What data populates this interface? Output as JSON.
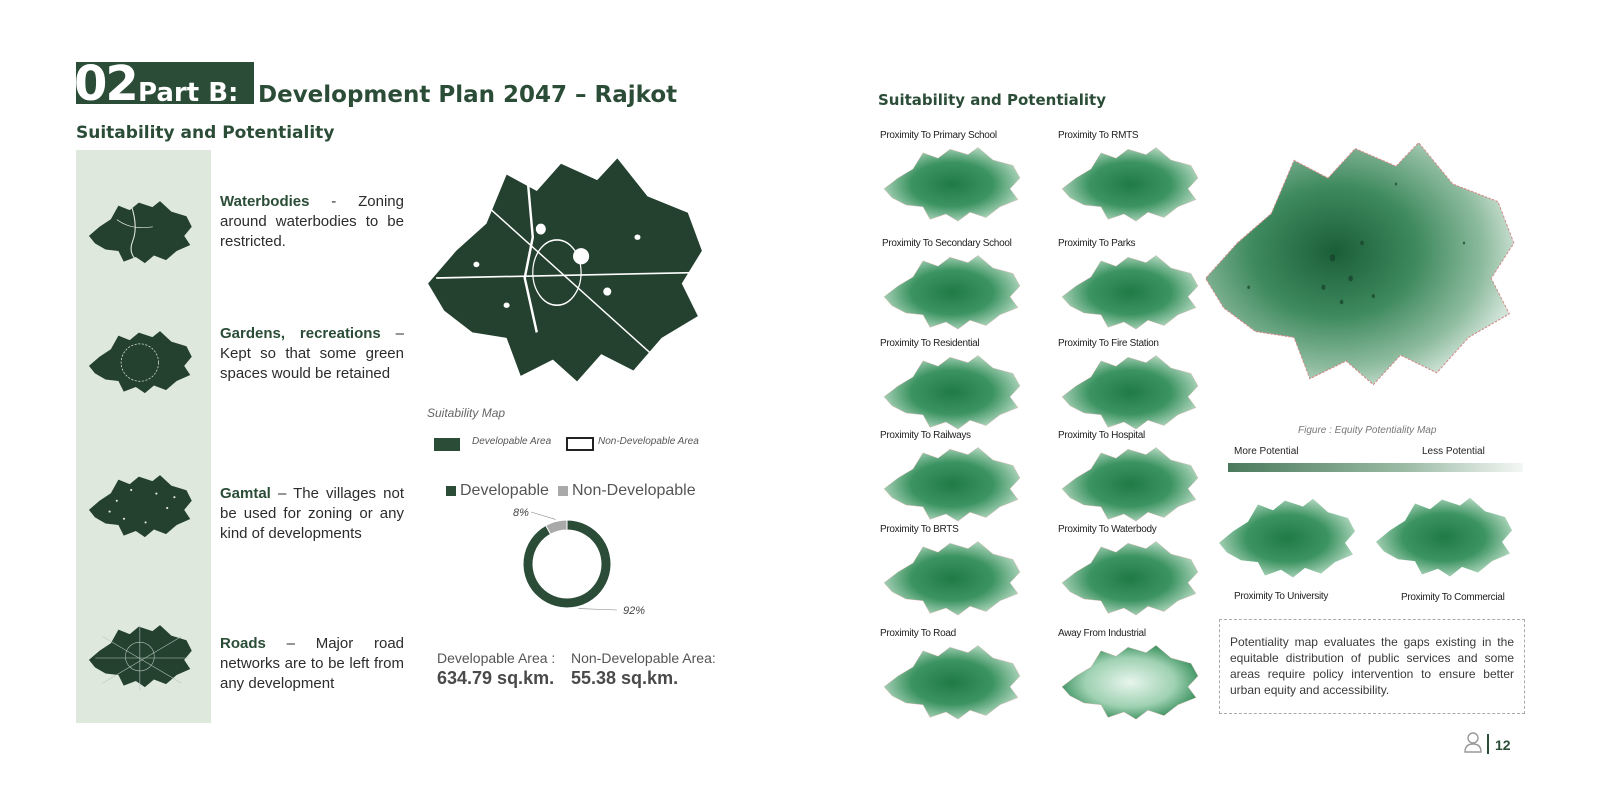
{
  "header": {
    "number": "02",
    "part": "Part B:",
    "title": "Development Plan 2047 – Rajkot"
  },
  "left_section_title": "Suitability and Potentiality",
  "right_section_title": "Suitability and Potentiality",
  "factors": [
    {
      "name": "Waterbodies",
      "text": " - Zoning around waterbodies to be restricted."
    },
    {
      "name": "Gardens, recreations",
      "text": " – Kept so that some green spaces would be retained"
    },
    {
      "name": "Gamtal",
      "text": " – The villages not be used for zoning or any kind of developments"
    },
    {
      "name": "Roads",
      "text": " – Major road networks are to be left from any development"
    }
  ],
  "suitability_map": {
    "caption": "Suitability Map",
    "legend_developable": "Developable Area",
    "legend_non_developable": "Non-Developable Area"
  },
  "chart_data": {
    "type": "pie",
    "categories": [
      "Developable",
      "Non-Developable"
    ],
    "values": [
      92,
      8
    ],
    "value_labels": [
      "92%",
      "8%"
    ],
    "colors": [
      "#2b4d37",
      "#a9a9a9"
    ]
  },
  "areas": {
    "developable_label": "Developable Area :",
    "developable_value": "634.79 sq.km.",
    "non_developable_label": "Non-Developable Area:",
    "non_developable_value": "55.38 sq.km."
  },
  "proximity_maps": [
    "Proximity To Primary School",
    "Proximity To RMTS",
    "Proximity To Secondary School",
    "Proximity To Parks",
    "Proximity To Residential",
    "Proximity To Fire Station",
    "Proximity To Railways",
    "Proximity To Hospital",
    "Proximity To BRTS",
    "Proximity To Waterbody",
    "Proximity To Road",
    "Away From Industrial"
  ],
  "equity_map": {
    "caption": "Figure : Equity Potentiality Map",
    "more": "More Potential",
    "less": "Less Potential"
  },
  "bottom_maps": [
    "Proximity To University",
    "Proximity To Commercial"
  ],
  "note": "Potentiality map evaluates the gaps existing in the equitable distribution of public services and some areas require policy intervention to ensure better urban equity and accessibility.",
  "footer": {
    "icon": "user-icon",
    "page": "12"
  },
  "colors": {
    "dark_green": "#2b4d37",
    "strip": "#dfe8dc",
    "grey": "#a9a9a9"
  }
}
